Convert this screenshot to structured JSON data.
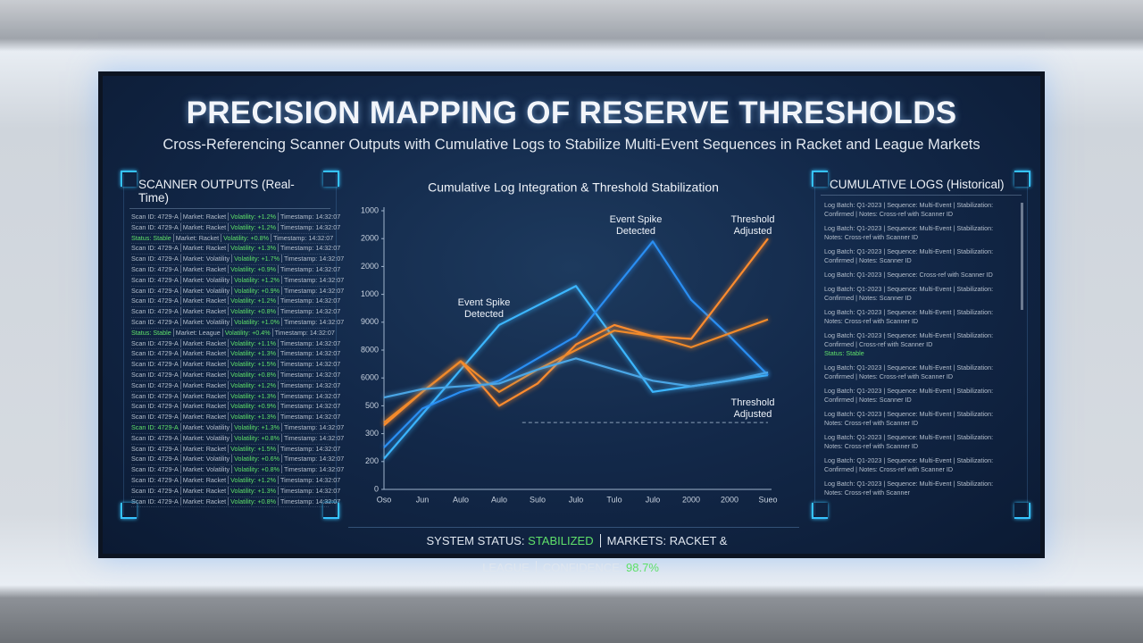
{
  "header": {
    "title": "PRECISION MAPPING OF RESERVE THRESHOLDS",
    "subtitle": "Cross-Referencing Scanner Outputs with Cumulative Logs to Stabilize Multi-Event Sequences in Racket and League Markets"
  },
  "scanner": {
    "title": "SCANNER OUTPUTS (Real-Time)",
    "rows": [
      [
        "Scan ID: 4729-A",
        "Market: Racket",
        "Volatility: +1.2%",
        "Timestamp: 14:32:07"
      ],
      [
        "Scan ID: 4729-A",
        "Market: Racket",
        "Volatility: +1.2%",
        "Timestamp: 14:32:07"
      ],
      [
        "Status: Stable",
        "Market: Racket",
        "Volatility: +0.8%",
        "Timestamp: 14:32:07"
      ],
      [
        "Scan ID: 4729-A",
        "Market: Racket",
        "Volatility: +1.3%",
        "Timestamp: 14:32:07"
      ],
      [
        "Scan ID: 4729-A",
        "Market: Volatility",
        "Volatility: +1.7%",
        "Timestamp: 14:32:07"
      ],
      [
        "Scan ID: 4729-A",
        "Market: Racket",
        "Volatility: +0.9%",
        "Timestamp: 14:32:07"
      ],
      [
        "Scan ID: 4729-A",
        "Market: Volatility",
        "Volatility: +1.2%",
        "Timestamp: 14:32:07"
      ],
      [
        "Scan ID: 4729-A",
        "Market: Volatility",
        "Volatility: +0.9%",
        "Timestamp: 14:32:07"
      ],
      [
        "Scan ID: 4729-A",
        "Market: Racket",
        "Volatility: +1.2%",
        "Timestamp: 14:32:07"
      ],
      [
        "Scan ID: 4729-A",
        "Market: Racket",
        "Volatility: +0.8%",
        "Timestamp: 14:32:07"
      ],
      [
        "Scan ID: 4729-A",
        "Market: Volatility",
        "Volatility: +1.0%",
        "Timestamp: 14:32:07"
      ],
      [
        "Status: Stable",
        "Market: League",
        "Volatility: +0.4%",
        "Timestamp: 14:32:07"
      ],
      [
        "Scan ID: 4729-A",
        "Market: Racket",
        "Volatility: +1.1%",
        "Timestamp: 14:32:07"
      ],
      [
        "Scan ID: 4729-A",
        "Market: Racket",
        "Volatility: +1.3%",
        "Timestamp: 14:32:07"
      ],
      [
        "Scan ID: 4729-A",
        "Market: Racket",
        "Volatility: +1.5%",
        "Timestamp: 14:32:07"
      ],
      [
        "Scan ID: 4729-A",
        "Market: Racket",
        "Volatility: +0.8%",
        "Timestamp: 14:32:07"
      ],
      [
        "Scan ID: 4729-A",
        "Market: Racket",
        "Volatility: +1.2%",
        "Timestamp: 14:32:07"
      ],
      [
        "Scan ID: 4729-A",
        "Market: Racket",
        "Volatility: +1.3%",
        "Timestamp: 14:32:07"
      ],
      [
        "Scan ID: 4729-A",
        "Market: Racket",
        "Volatility: +0.9%",
        "Timestamp: 14:32:07"
      ],
      [
        "Scan ID: 4729-A",
        "Market: Racket",
        "Volatility: +1.3%",
        "Timestamp: 14:32:07"
      ],
      [
        "Scan ID: 4729-A",
        "Market: Volatility",
        "Volatility: +1.3%",
        "Timestamp: 14:32:07"
      ],
      [
        "Scan ID: 4729-A",
        "Market: Volatility",
        "Volatility: +0.8%",
        "Timestamp: 14:32:07"
      ],
      [
        "Scan ID: 4729-A",
        "Market: Racket",
        "Volatility: +1.5%",
        "Timestamp: 14:32:07"
      ],
      [
        "Scan ID: 4729-A",
        "Market: Volatility",
        "Volatility: +0.6%",
        "Timestamp: 14:32:07"
      ],
      [
        "Scan ID: 4729-A",
        "Market: Volatility",
        "Volatility: +0.8%",
        "Timestamp: 14:32:07"
      ],
      [
        "Scan ID: 4729-A",
        "Market: Racket",
        "Volatility: +1.2%",
        "Timestamp: 14:32:07"
      ],
      [
        "Scan ID: 4729-A",
        "Market: Racket",
        "Volatility: +1.3%",
        "Timestamp: 14:32:07"
      ],
      [
        "Scan ID: 4729-A",
        "Market: Racket",
        "Volatility: +0.8%",
        "Timestamp: 14:32:07"
      ]
    ]
  },
  "logs": {
    "title": "CUMULATIVE LOGS (Historical)",
    "entries": [
      [
        "Log Batch: Q1-2023 | Sequence: Multi-Event | Stabilization:",
        "Confirmed | Notes: Cross-ref with Scanner ID"
      ],
      [
        "Log Batch: Q1-2023 | Sequence: Multi-Event | Stabilization:",
        "Notes: Cross-ref with Scanner ID"
      ],
      [
        "Log Batch: Q1-2023 | Sequence: Multi-Event | Stabilization:",
        "Confirmed | Notes: Scanner ID"
      ],
      [
        "Log Batch: Q1-2023 | Sequence: Cross-ref with Scanner ID"
      ],
      [
        "Log Batch: Q1-2023 | Sequence: Multi-Event | Stabilization:",
        "Confirmed | Notes: Scanner ID"
      ],
      [
        "Log Batch: Q1-2023 | Sequence: Multi-Event | Stabilization:",
        "Notes: Cross-ref with Scanner ID"
      ],
      [
        "Log Batch: Q1-2023 | Sequence: Multi-Event | Stabilization:",
        "Confirmed | Cross-ref with Scanner ID",
        "Status: Stable"
      ],
      [
        "Log Batch: Q1-2023 | Sequence: Multi-Event | Stabilization:",
        "Confirmed | Notes: Cross-ref with Scanner ID"
      ],
      [
        "Log Batch: Q1-2023 | Sequence: Multi-Event | Stabilization:",
        "Confirmed | Notes: Scanner ID"
      ],
      [
        "Log Batch: Q1-2023 | Sequence: Multi-Event | Stabilization:",
        "Notes: Cross-ref with Scanner ID"
      ],
      [
        "Log Batch: Q1-2023 | Sequence: Multi-Event | Stabilization:",
        "Notes: Cross-ref with Scanner ID"
      ],
      [
        "Log Batch: Q1-2023 | Sequence: Multi-Event | Stabilization:",
        "Confirmed | Notes: Cross-ref with Scanner ID"
      ],
      [
        "Log Batch: Q1-2023 | Sequence: Multi-Event | Stabilization:",
        "Notes: Cross-ref with Scanner"
      ]
    ]
  },
  "status": [
    {
      "label": "SYSTEM STATUS:",
      "value": "STABILIZED"
    },
    {
      "label": "MARKETS:",
      "value": "RACKET & LEAGUE"
    },
    {
      "label": "CONFIDENCE:",
      "value": "98.7%"
    }
  ],
  "chart_data": {
    "type": "line",
    "title": "Cumulative Log Integration & Threshold Stabilization",
    "categories": [
      "Oso",
      "Jun",
      "Aulo",
      "Aulo",
      "Sulo",
      "Julo",
      "Tulo",
      "Julo",
      "2000",
      "2000",
      "Sueo"
    ],
    "ylim": [
      0,
      10
    ],
    "yticks": [
      {
        "value": 0,
        "label": "0"
      },
      {
        "value": 1,
        "label": "200"
      },
      {
        "value": 2,
        "label": "300"
      },
      {
        "value": 3,
        "label": "500"
      },
      {
        "value": 4,
        "label": "6000"
      },
      {
        "value": 5,
        "label": "8000"
      },
      {
        "value": 6,
        "label": "9000"
      },
      {
        "value": 7,
        "label": "1000"
      },
      {
        "value": 8,
        "label": "2000"
      },
      {
        "value": 9,
        "label": "2000"
      },
      {
        "value": 10,
        "label": "1000"
      }
    ],
    "grid": false,
    "threshold": 2.4,
    "series": [
      {
        "color": "#3cb6ff",
        "values": [
          1.1,
          2.7,
          4.3,
          5.9,
          6.6,
          7.3,
          5.4,
          3.5,
          3.7,
          3.9,
          4.1
        ]
      },
      {
        "color": "#2a8ef2",
        "values": [
          1.5,
          2.9,
          3.5,
          3.9,
          4.7,
          5.5,
          7.2,
          8.9,
          6.8,
          5.5,
          4.1
        ]
      },
      {
        "color": "#ff8c2e",
        "values": [
          2.3,
          3.5,
          4.6,
          3.0,
          3.8,
          5.2,
          5.9,
          5.5,
          5.4,
          7.2,
          9.0
        ]
      },
      {
        "color": "#f08a2a",
        "values": [
          2.4,
          3.5,
          4.6,
          3.5,
          4.3,
          5.0,
          5.7,
          5.5,
          5.1,
          5.6,
          6.1
        ]
      },
      {
        "color": "#4aa6e6",
        "values": [
          3.3,
          3.6,
          3.7,
          3.8,
          4.3,
          4.7,
          4.3,
          3.9,
          3.7,
          3.9,
          4.2
        ]
      }
    ],
    "annotations": [
      [
        "Event Spike",
        "Detected"
      ],
      [
        "Event Spike",
        "Detected"
      ],
      [
        "Threshold",
        "Adjusted"
      ],
      [
        "Threshold",
        "Adjusted"
      ]
    ]
  }
}
